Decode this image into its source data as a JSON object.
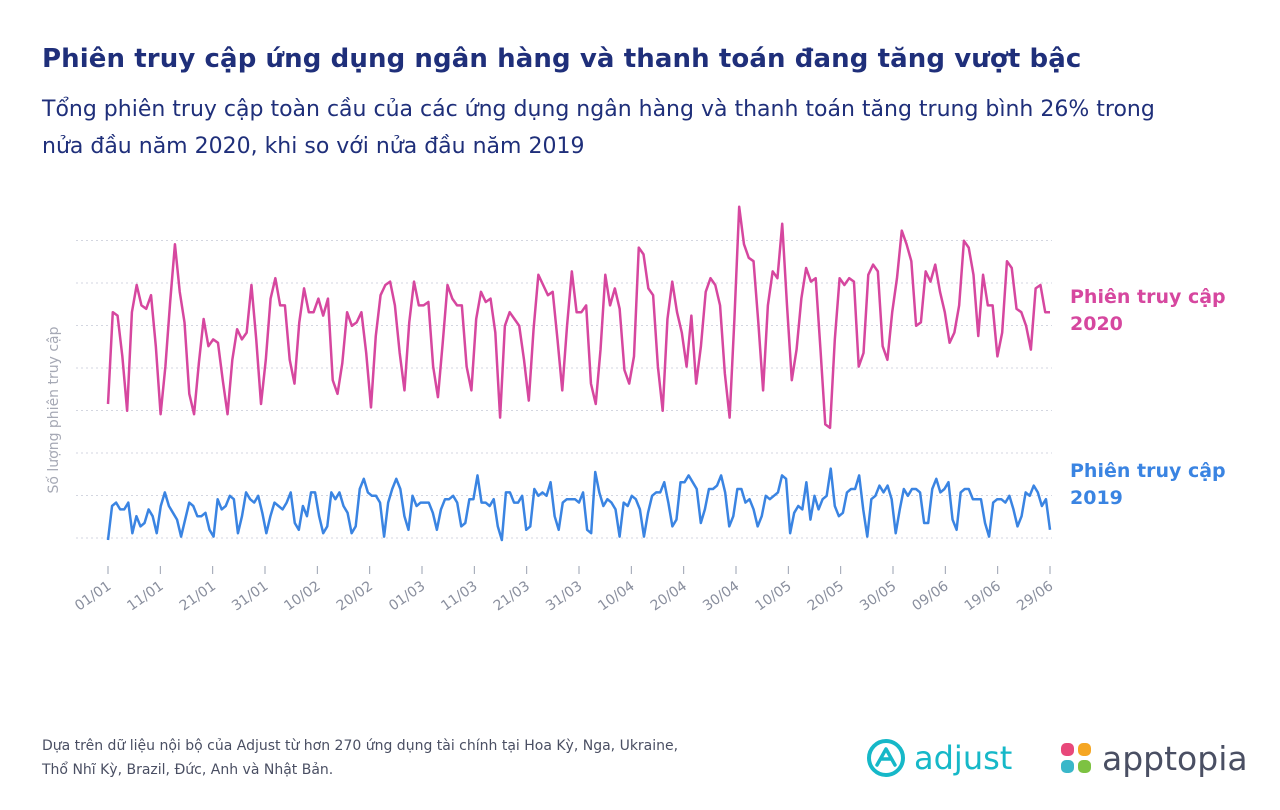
{
  "header": {
    "title": "Phiên truy cập ứng dụng ngân hàng và thanh toán đang tăng vượt bậc",
    "subtitle": "Tổng phiên truy cập toàn cầu của các ứng dụng ngân hàng và thanh toán tăng trung bình 26% trong nửa đầu năm 2020, khi so với nửa đầu năm 2019"
  },
  "footer": {
    "note": "Dựa trên dữ liệu nội bộ của Adjust từ hơn 270 ứng dụng tài chính tại Hoa Kỳ, Nga, Ukraine, Thổ Nhĩ Kỳ, Brazil, Đức, Anh và Nhật Bản.",
    "logos": {
      "adjust": "adjust",
      "apptopia": "apptopia"
    }
  },
  "colors": {
    "series_2020": "#d6479f",
    "series_2019": "#3a84e2",
    "grid": "#d3d6e0",
    "title": "#1f2f7a"
  },
  "chart_data": {
    "type": "line",
    "ylabel": "Số lượng phiên truy cập",
    "xlabel": "",
    "ylim": [
      0,
      100
    ],
    "grid": "horizontal dotted",
    "legend": "inline right",
    "x_tick_labels": [
      "01/01",
      "11/01",
      "21/01",
      "31/01",
      "10/02",
      "20/02",
      "01/03",
      "11/03",
      "21/03",
      "31/03",
      "10/04",
      "20/04",
      "30/04",
      "10/05",
      "20/05",
      "30/05",
      "09/06",
      "19/06",
      "29/06"
    ],
    "series": [
      {
        "name": "Phiên truy cập 2020",
        "line1": "Phiên truy cập",
        "line2": "2020",
        "color": "#d6479f",
        "values": [
          40,
          67,
          66,
          54,
          38,
          67,
          75,
          69,
          68,
          72,
          57,
          37,
          51,
          70,
          87,
          73,
          64,
          43,
          37,
          52,
          65,
          57,
          59,
          58,
          47,
          37,
          53,
          62,
          59,
          61,
          75,
          59,
          40,
          53,
          71,
          77,
          69,
          69,
          53,
          46,
          64,
          74,
          67,
          67,
          71,
          66,
          71,
          47,
          43,
          52,
          67,
          63,
          64,
          67,
          55,
          39,
          60,
          72,
          75,
          76,
          69,
          55,
          44,
          64,
          76,
          69,
          69,
          70,
          51,
          42,
          58,
          75,
          71,
          69,
          69,
          51,
          44,
          65,
          73,
          70,
          71,
          61,
          36,
          63,
          67,
          65,
          63,
          53,
          41,
          62,
          78,
          75,
          72,
          73,
          59,
          44,
          63,
          79,
          67,
          67,
          69,
          46,
          40,
          56,
          78,
          69,
          74,
          68,
          50,
          46,
          54,
          86,
          84,
          74,
          72,
          51,
          38,
          65,
          76,
          67,
          61,
          51,
          66,
          46,
          57,
          73,
          77,
          75,
          69,
          49,
          36,
          65,
          98,
          87,
          83,
          82,
          64,
          44,
          69,
          79,
          77,
          93,
          69,
          47,
          56,
          71,
          80,
          76,
          77,
          56,
          34,
          33,
          59,
          77,
          75,
          77,
          76,
          51,
          55,
          78,
          81,
          79,
          57,
          53,
          67,
          77,
          91,
          87,
          82,
          63,
          64,
          79,
          76,
          81,
          73,
          67,
          58,
          61,
          69,
          88,
          86,
          78,
          60,
          78,
          69,
          69,
          54,
          61,
          82,
          80,
          68,
          67,
          63,
          56,
          74,
          75,
          67,
          67
        ]
      },
      {
        "name": "Phiên truy cập 2019",
        "line1": "Phiên truy cập",
        "line2": "2019",
        "color": "#3a84e2",
        "values": [
          0,
          10,
          11,
          9,
          9,
          11,
          2,
          7,
          4,
          5,
          9,
          7,
          2,
          10,
          14,
          10,
          8,
          6,
          1,
          6,
          11,
          10,
          7,
          7,
          8,
          3,
          1,
          12,
          9,
          10,
          13,
          12,
          2,
          7,
          14,
          12,
          11,
          13,
          8,
          2,
          7,
          11,
          10,
          9,
          11,
          14,
          5,
          3,
          10,
          7,
          14,
          14,
          7,
          2,
          4,
          14,
          12,
          14,
          10,
          8,
          2,
          4,
          15,
          18,
          14,
          13,
          13,
          11,
          1,
          11,
          15,
          18,
          15,
          7,
          3,
          13,
          10,
          11,
          11,
          11,
          8,
          3,
          9,
          12,
          12,
          13,
          11,
          4,
          5,
          12,
          12,
          19,
          11,
          11,
          10,
          12,
          4,
          0,
          14,
          14,
          11,
          11,
          13,
          3,
          4,
          15,
          13,
          14,
          13,
          17,
          7,
          3,
          11,
          12,
          12,
          12,
          11,
          14,
          3,
          2,
          20,
          14,
          10,
          12,
          11,
          9,
          1,
          11,
          10,
          13,
          12,
          9,
          1,
          8,
          13,
          14,
          14,
          17,
          11,
          4,
          6,
          17,
          17,
          19,
          17,
          15,
          5,
          9,
          15,
          15,
          16,
          19,
          14,
          4,
          7,
          15,
          15,
          11,
          12,
          9,
          4,
          7,
          13,
          12,
          13,
          14,
          19,
          18,
          2,
          8,
          10,
          9,
          17,
          6,
          13,
          9,
          12,
          13,
          21,
          10,
          7,
          8,
          14,
          15,
          15,
          19,
          9,
          1,
          12,
          13,
          16,
          14,
          16,
          12,
          2,
          9,
          15,
          13,
          15,
          15,
          14,
          5,
          5,
          15,
          18,
          14,
          15,
          17,
          6,
          3,
          14,
          15,
          15,
          12,
          12,
          12,
          5,
          1,
          11,
          12,
          12,
          11,
          13,
          9,
          4,
          7,
          14,
          13,
          16,
          14,
          10,
          12,
          3
        ]
      }
    ]
  }
}
